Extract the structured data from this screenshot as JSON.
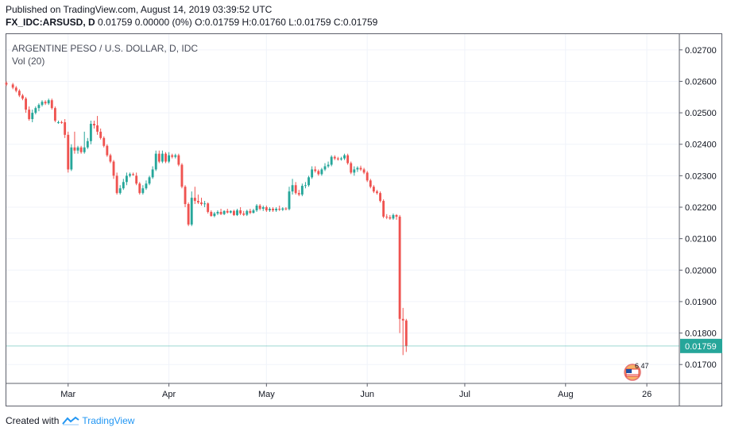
{
  "header": {
    "published_line": "Published on TradingView.com, August 14, 2019 03:39:52 UTC",
    "symbol": "FX_IDC:ARSUSD, D",
    "ohlc": "0.01759 0.00000 (0%) O:0.01759 H:0.01760 L:0.01759 C:0.01759"
  },
  "legend": {
    "title": "ARGENTINE PESO / U.S. DOLLAR, D, IDC",
    "indicator": "Vol (20)"
  },
  "footer": {
    "created_with": "Created with",
    "brand": "TradingView"
  },
  "badge": {
    "text": "6 47"
  },
  "colors": {
    "up": "#26a69a",
    "down": "#ef5350",
    "last_price_bg": "#26a69a",
    "grid": "#f0f3fa",
    "axis": "#5d606b"
  },
  "chart_data": {
    "type": "candlestick",
    "title": "ARGENTINE PESO / U.S. DOLLAR, D, IDC",
    "ylim": [
      0.0164,
      0.0275
    ],
    "yticks": [
      "0.02700",
      "0.02600",
      "0.02500",
      "0.02400",
      "0.02300",
      "0.02200",
      "0.02100",
      "0.02000",
      "0.01900",
      "0.01800",
      "0.01700"
    ],
    "xtick_labels": [
      {
        "label": "Mar",
        "day": 15
      },
      {
        "label": "Apr",
        "day": 46
      },
      {
        "label": "May",
        "day": 76
      },
      {
        "label": "Jun",
        "day": 107
      },
      {
        "label": "Jul",
        "day": 137
      },
      {
        "label": "Aug",
        "day": 168
      },
      {
        "label": "26",
        "day": 193
      }
    ],
    "x_range": [
      -4,
      203
    ],
    "last_price": "0.01759",
    "last_value": 0.01759,
    "candles": [
      {
        "d": -4,
        "o": 0.02595,
        "h": 0.026,
        "l": 0.02585,
        "c": 0.0259
      },
      {
        "d": -2,
        "o": 0.0259,
        "h": 0.02595,
        "l": 0.02575,
        "c": 0.0258
      },
      {
        "d": -1,
        "o": 0.0258,
        "h": 0.02585,
        "l": 0.02565,
        "c": 0.0257
      },
      {
        "d": 0,
        "o": 0.0257,
        "h": 0.02575,
        "l": 0.0255,
        "c": 0.02555
      },
      {
        "d": 1,
        "o": 0.02555,
        "h": 0.0256,
        "l": 0.0254,
        "c": 0.02545
      },
      {
        "d": 2,
        "o": 0.02545,
        "h": 0.0255,
        "l": 0.025,
        "c": 0.0251
      },
      {
        "d": 3,
        "o": 0.0251,
        "h": 0.0252,
        "l": 0.02475,
        "c": 0.0248
      },
      {
        "d": 4,
        "o": 0.0248,
        "h": 0.0251,
        "l": 0.0247,
        "c": 0.025
      },
      {
        "d": 5,
        "o": 0.025,
        "h": 0.0252,
        "l": 0.02495,
        "c": 0.02515
      },
      {
        "d": 6,
        "o": 0.02515,
        "h": 0.0253,
        "l": 0.02505,
        "c": 0.02525
      },
      {
        "d": 7,
        "o": 0.02525,
        "h": 0.0254,
        "l": 0.0252,
        "c": 0.02535
      },
      {
        "d": 8,
        "o": 0.02535,
        "h": 0.0254,
        "l": 0.02525,
        "c": 0.0253
      },
      {
        "d": 9,
        "o": 0.0253,
        "h": 0.02545,
        "l": 0.02525,
        "c": 0.0254
      },
      {
        "d": 10,
        "o": 0.0254,
        "h": 0.02545,
        "l": 0.0251,
        "c": 0.02515
      },
      {
        "d": 11,
        "o": 0.02515,
        "h": 0.0252,
        "l": 0.0247,
        "c": 0.02475
      },
      {
        "d": 12,
        "o": 0.0247,
        "h": 0.02475,
        "l": 0.02465,
        "c": 0.0247
      },
      {
        "d": 13,
        "o": 0.0247,
        "h": 0.02475,
        "l": 0.02465,
        "c": 0.02468
      },
      {
        "d": 14,
        "o": 0.0247,
        "h": 0.0248,
        "l": 0.0242,
        "c": 0.0243
      },
      {
        "d": 15,
        "o": 0.0243,
        "h": 0.0244,
        "l": 0.0231,
        "c": 0.0232
      },
      {
        "d": 16,
        "o": 0.0232,
        "h": 0.024,
        "l": 0.02315,
        "c": 0.0239
      },
      {
        "d": 17,
        "o": 0.0239,
        "h": 0.0244,
        "l": 0.0237,
        "c": 0.0238
      },
      {
        "d": 18,
        "o": 0.0238,
        "h": 0.02395,
        "l": 0.0237,
        "c": 0.0239
      },
      {
        "d": 19,
        "o": 0.0239,
        "h": 0.02395,
        "l": 0.0237,
        "c": 0.02375
      },
      {
        "d": 20,
        "o": 0.02375,
        "h": 0.0244,
        "l": 0.0237,
        "c": 0.0239
      },
      {
        "d": 21,
        "o": 0.0239,
        "h": 0.0242,
        "l": 0.02385,
        "c": 0.0241
      },
      {
        "d": 22,
        "o": 0.0241,
        "h": 0.02475,
        "l": 0.024,
        "c": 0.02465
      },
      {
        "d": 23,
        "o": 0.02465,
        "h": 0.02475,
        "l": 0.0245,
        "c": 0.0246
      },
      {
        "d": 24,
        "o": 0.0246,
        "h": 0.0249,
        "l": 0.0243,
        "c": 0.0244
      },
      {
        "d": 25,
        "o": 0.0244,
        "h": 0.0245,
        "l": 0.02415,
        "c": 0.0242
      },
      {
        "d": 26,
        "o": 0.0242,
        "h": 0.02425,
        "l": 0.0239,
        "c": 0.02395
      },
      {
        "d": 27,
        "o": 0.02395,
        "h": 0.024,
        "l": 0.0236,
        "c": 0.02365
      },
      {
        "d": 28,
        "o": 0.02365,
        "h": 0.0237,
        "l": 0.0234,
        "c": 0.02345
      },
      {
        "d": 29,
        "o": 0.02345,
        "h": 0.0235,
        "l": 0.0229,
        "c": 0.023
      },
      {
        "d": 30,
        "o": 0.023,
        "h": 0.0231,
        "l": 0.0224,
        "c": 0.02245
      },
      {
        "d": 31,
        "o": 0.02245,
        "h": 0.0227,
        "l": 0.0224,
        "c": 0.0226
      },
      {
        "d": 32,
        "o": 0.0226,
        "h": 0.0229,
        "l": 0.02255,
        "c": 0.0228
      },
      {
        "d": 33,
        "o": 0.0228,
        "h": 0.0231,
        "l": 0.0227,
        "c": 0.023
      },
      {
        "d": 34,
        "o": 0.023,
        "h": 0.0231,
        "l": 0.02295,
        "c": 0.02305
      },
      {
        "d": 35,
        "o": 0.02305,
        "h": 0.0231,
        "l": 0.023,
        "c": 0.02302
      },
      {
        "d": 36,
        "o": 0.023,
        "h": 0.0231,
        "l": 0.0227,
        "c": 0.02275
      },
      {
        "d": 37,
        "o": 0.02275,
        "h": 0.0228,
        "l": 0.0224,
        "c": 0.02245
      },
      {
        "d": 38,
        "o": 0.02245,
        "h": 0.0227,
        "l": 0.0224,
        "c": 0.0226
      },
      {
        "d": 39,
        "o": 0.0226,
        "h": 0.02285,
        "l": 0.02255,
        "c": 0.02275
      },
      {
        "d": 40,
        "o": 0.02275,
        "h": 0.023,
        "l": 0.0227,
        "c": 0.02295
      },
      {
        "d": 41,
        "o": 0.02295,
        "h": 0.0233,
        "l": 0.0229,
        "c": 0.0232
      },
      {
        "d": 42,
        "o": 0.0232,
        "h": 0.0238,
        "l": 0.02315,
        "c": 0.0237
      },
      {
        "d": 43,
        "o": 0.0237,
        "h": 0.0238,
        "l": 0.0234,
        "c": 0.02345
      },
      {
        "d": 44,
        "o": 0.02345,
        "h": 0.0238,
        "l": 0.0234,
        "c": 0.0237
      },
      {
        "d": 45,
        "o": 0.0237,
        "h": 0.02375,
        "l": 0.0234,
        "c": 0.02345
      },
      {
        "d": 46,
        "o": 0.02345,
        "h": 0.02375,
        "l": 0.0234,
        "c": 0.02365
      },
      {
        "d": 47,
        "o": 0.02365,
        "h": 0.0237,
        "l": 0.02355,
        "c": 0.0236
      },
      {
        "d": 48,
        "o": 0.0236,
        "h": 0.0237,
        "l": 0.02355,
        "c": 0.02365
      },
      {
        "d": 49,
        "o": 0.02365,
        "h": 0.0237,
        "l": 0.0233,
        "c": 0.02335
      },
      {
        "d": 50,
        "o": 0.02335,
        "h": 0.0234,
        "l": 0.0226,
        "c": 0.02265
      },
      {
        "d": 51,
        "o": 0.02265,
        "h": 0.0227,
        "l": 0.022,
        "c": 0.0221
      },
      {
        "d": 52,
        "o": 0.0221,
        "h": 0.02215,
        "l": 0.0214,
        "c": 0.02145
      },
      {
        "d": 53,
        "o": 0.02145,
        "h": 0.0225,
        "l": 0.0214,
        "c": 0.0223
      },
      {
        "d": 54,
        "o": 0.0223,
        "h": 0.02265,
        "l": 0.0221,
        "c": 0.0222
      },
      {
        "d": 55,
        "o": 0.0222,
        "h": 0.0224,
        "l": 0.0221,
        "c": 0.02215
      },
      {
        "d": 56,
        "o": 0.02215,
        "h": 0.0223,
        "l": 0.02205,
        "c": 0.0221
      },
      {
        "d": 57,
        "o": 0.0221,
        "h": 0.0222,
        "l": 0.022,
        "c": 0.02212
      },
      {
        "d": 58,
        "o": 0.02212,
        "h": 0.02215,
        "l": 0.0218,
        "c": 0.02185
      },
      {
        "d": 59,
        "o": 0.02185,
        "h": 0.0219,
        "l": 0.0217,
        "c": 0.02172
      },
      {
        "d": 60,
        "o": 0.02172,
        "h": 0.02185,
        "l": 0.02168,
        "c": 0.0218
      },
      {
        "d": 61,
        "o": 0.0218,
        "h": 0.0219,
        "l": 0.02175,
        "c": 0.02185
      },
      {
        "d": 62,
        "o": 0.02185,
        "h": 0.02195,
        "l": 0.02175,
        "c": 0.02178
      },
      {
        "d": 63,
        "o": 0.02178,
        "h": 0.0219,
        "l": 0.02175,
        "c": 0.02188
      },
      {
        "d": 64,
        "o": 0.02188,
        "h": 0.02195,
        "l": 0.0218,
        "c": 0.02183
      },
      {
        "d": 65,
        "o": 0.02183,
        "h": 0.0219,
        "l": 0.0218,
        "c": 0.02188
      },
      {
        "d": 66,
        "o": 0.02188,
        "h": 0.02192,
        "l": 0.02172,
        "c": 0.02175
      },
      {
        "d": 67,
        "o": 0.02175,
        "h": 0.02195,
        "l": 0.02172,
        "c": 0.0219
      },
      {
        "d": 68,
        "o": 0.0219,
        "h": 0.022,
        "l": 0.02175,
        "c": 0.0218
      },
      {
        "d": 69,
        "o": 0.0218,
        "h": 0.02188,
        "l": 0.02172,
        "c": 0.02176
      },
      {
        "d": 70,
        "o": 0.02176,
        "h": 0.02192,
        "l": 0.02172,
        "c": 0.02188
      },
      {
        "d": 71,
        "o": 0.02188,
        "h": 0.02195,
        "l": 0.02178,
        "c": 0.02182
      },
      {
        "d": 72,
        "o": 0.02182,
        "h": 0.02195,
        "l": 0.0218,
        "c": 0.0219
      },
      {
        "d": 73,
        "o": 0.0219,
        "h": 0.0221,
        "l": 0.02185,
        "c": 0.02205
      },
      {
        "d": 74,
        "o": 0.02205,
        "h": 0.0221,
        "l": 0.0219,
        "c": 0.02195
      },
      {
        "d": 75,
        "o": 0.02195,
        "h": 0.02205,
        "l": 0.02188,
        "c": 0.022
      },
      {
        "d": 76,
        "o": 0.022,
        "h": 0.02205,
        "l": 0.02185,
        "c": 0.0219
      },
      {
        "d": 77,
        "o": 0.0219,
        "h": 0.022,
        "l": 0.02185,
        "c": 0.02195
      },
      {
        "d": 78,
        "o": 0.02195,
        "h": 0.022,
        "l": 0.02185,
        "c": 0.0219
      },
      {
        "d": 79,
        "o": 0.0219,
        "h": 0.022,
        "l": 0.02185,
        "c": 0.02195
      },
      {
        "d": 80,
        "o": 0.02195,
        "h": 0.02205,
        "l": 0.02188,
        "c": 0.02192
      },
      {
        "d": 81,
        "o": 0.02192,
        "h": 0.022,
        "l": 0.02188,
        "c": 0.02196
      },
      {
        "d": 82,
        "o": 0.02196,
        "h": 0.022,
        "l": 0.0219,
        "c": 0.02194
      },
      {
        "d": 83,
        "o": 0.02194,
        "h": 0.02265,
        "l": 0.0219,
        "c": 0.0225
      },
      {
        "d": 84,
        "o": 0.0225,
        "h": 0.0229,
        "l": 0.0224,
        "c": 0.0227
      },
      {
        "d": 85,
        "o": 0.0227,
        "h": 0.0228,
        "l": 0.0224,
        "c": 0.02245
      },
      {
        "d": 86,
        "o": 0.02245,
        "h": 0.02255,
        "l": 0.02235,
        "c": 0.0224
      },
      {
        "d": 87,
        "o": 0.0224,
        "h": 0.02275,
        "l": 0.02235,
        "c": 0.02268
      },
      {
        "d": 88,
        "o": 0.02268,
        "h": 0.0228,
        "l": 0.0226,
        "c": 0.0227
      },
      {
        "d": 89,
        "o": 0.0227,
        "h": 0.023,
        "l": 0.02265,
        "c": 0.02295
      },
      {
        "d": 90,
        "o": 0.02295,
        "h": 0.0233,
        "l": 0.0229,
        "c": 0.0232
      },
      {
        "d": 91,
        "o": 0.0232,
        "h": 0.0233,
        "l": 0.0231,
        "c": 0.02315
      },
      {
        "d": 92,
        "o": 0.02315,
        "h": 0.0232,
        "l": 0.023,
        "c": 0.02305
      },
      {
        "d": 93,
        "o": 0.02305,
        "h": 0.02325,
        "l": 0.023,
        "c": 0.0232
      },
      {
        "d": 94,
        "o": 0.0232,
        "h": 0.0234,
        "l": 0.02315,
        "c": 0.0233
      },
      {
        "d": 95,
        "o": 0.0233,
        "h": 0.02345,
        "l": 0.02325,
        "c": 0.02335
      },
      {
        "d": 96,
        "o": 0.02335,
        "h": 0.02365,
        "l": 0.0233,
        "c": 0.0236
      },
      {
        "d": 97,
        "o": 0.0236,
        "h": 0.02365,
        "l": 0.0235,
        "c": 0.02355
      },
      {
        "d": 98,
        "o": 0.02355,
        "h": 0.0236,
        "l": 0.02348,
        "c": 0.02352
      },
      {
        "d": 99,
        "o": 0.02352,
        "h": 0.0236,
        "l": 0.02348,
        "c": 0.02355
      },
      {
        "d": 100,
        "o": 0.02355,
        "h": 0.0237,
        "l": 0.0235,
        "c": 0.02365
      },
      {
        "d": 101,
        "o": 0.02365,
        "h": 0.0237,
        "l": 0.02335,
        "c": 0.0234
      },
      {
        "d": 102,
        "o": 0.0234,
        "h": 0.02345,
        "l": 0.02305,
        "c": 0.0231
      },
      {
        "d": 103,
        "o": 0.0231,
        "h": 0.0233,
        "l": 0.023,
        "c": 0.0232
      },
      {
        "d": 104,
        "o": 0.0232,
        "h": 0.0233,
        "l": 0.02312,
        "c": 0.02325
      },
      {
        "d": 105,
        "o": 0.02325,
        "h": 0.02332,
        "l": 0.02315,
        "c": 0.0232
      },
      {
        "d": 106,
        "o": 0.0232,
        "h": 0.02325,
        "l": 0.02305,
        "c": 0.0231
      },
      {
        "d": 107,
        "o": 0.0231,
        "h": 0.02315,
        "l": 0.0228,
        "c": 0.02285
      },
      {
        "d": 108,
        "o": 0.02285,
        "h": 0.0229,
        "l": 0.0226,
        "c": 0.02265
      },
      {
        "d": 109,
        "o": 0.02265,
        "h": 0.0227,
        "l": 0.02245,
        "c": 0.0225
      },
      {
        "d": 110,
        "o": 0.0225,
        "h": 0.02255,
        "l": 0.0224,
        "c": 0.02245
      },
      {
        "d": 111,
        "o": 0.02245,
        "h": 0.0225,
        "l": 0.02215,
        "c": 0.0222
      },
      {
        "d": 112,
        "o": 0.0222,
        "h": 0.02225,
        "l": 0.02165,
        "c": 0.0217
      },
      {
        "d": 113,
        "o": 0.0217,
        "h": 0.02178,
        "l": 0.02162,
        "c": 0.02168
      },
      {
        "d": 114,
        "o": 0.02168,
        "h": 0.02175,
        "l": 0.0216,
        "c": 0.02164
      },
      {
        "d": 115,
        "o": 0.02164,
        "h": 0.0218,
        "l": 0.0216,
        "c": 0.02175
      },
      {
        "d": 116,
        "o": 0.02175,
        "h": 0.02178,
        "l": 0.0216,
        "c": 0.0217
      },
      {
        "d": 117,
        "o": 0.0217,
        "h": 0.02175,
        "l": 0.018,
        "c": 0.01845
      },
      {
        "d": 118,
        "o": 0.01845,
        "h": 0.0188,
        "l": 0.0173,
        "c": 0.0184
      },
      {
        "d": 119,
        "o": 0.0184,
        "h": 0.01845,
        "l": 0.0174,
        "c": 0.01759
      }
    ],
    "candle_x_scale": [
      0.0,
      1.0
    ]
  }
}
